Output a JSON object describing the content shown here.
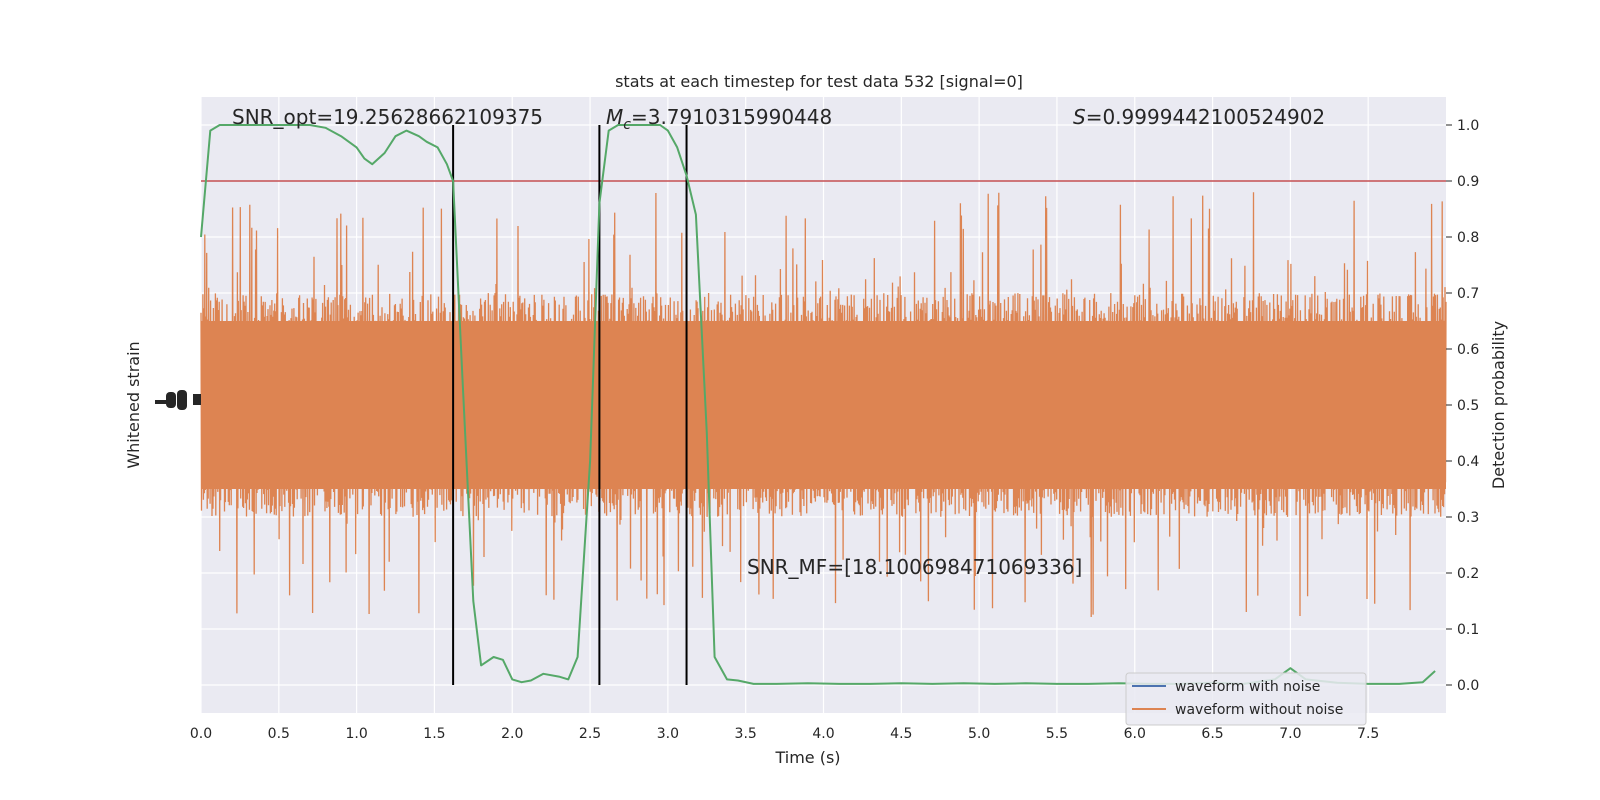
{
  "chart_data": {
    "type": "line",
    "title": "stats at each timestep for test data 532 [signal=0]",
    "xlabel": "Time (s)",
    "ylabel_left": "Whitened strain",
    "ylabel_right": "Detection probability",
    "xlim": [
      0.0,
      8.0
    ],
    "ylim_right": [
      -0.05,
      1.05
    ],
    "grid": true,
    "x_ticks": [
      "0.0",
      "0.5",
      "1.0",
      "1.5",
      "2.0",
      "2.5",
      "3.0",
      "3.5",
      "4.0",
      "4.5",
      "5.0",
      "5.5",
      "6.0",
      "6.5",
      "7.0",
      "7.5"
    ],
    "y_right_ticks": [
      "0.0",
      "0.1",
      "0.2",
      "0.3",
      "0.4",
      "0.5",
      "0.6",
      "0.7",
      "0.8",
      "0.9",
      "1.0"
    ],
    "annotations": {
      "snr_opt": "SNR_opt=19.25628662109375",
      "mc_symbol": "M",
      "mc_subscript": "c",
      "mc_value": "=3.7910315990448",
      "s_symbol": "S",
      "s_value": "=0.9999442100524902",
      "snr_mf": "SNR_MF=[18.100698471069336]"
    },
    "threshold": {
      "y": 0.9,
      "color": "#c44e52"
    },
    "vertical_lines_x": [
      1.62,
      2.56,
      3.12
    ],
    "legend": {
      "placement": "lower-right",
      "entries": [
        {
          "label": "waveform with noise",
          "color": "#4c72b0"
        },
        {
          "label": "waveform without noise",
          "color": "#dd8452"
        }
      ]
    },
    "series": [
      {
        "name": "waveform without noise",
        "color": "#dd8452",
        "representation": "dense noise band centered at 0.5 on the right axis scale",
        "center": 0.5,
        "band_half_width": 0.2,
        "peak_half_width": 0.38
      },
      {
        "color": "#55a868",
        "x": [
          0.0,
          0.06,
          0.12,
          0.2,
          0.3,
          0.4,
          0.5,
          0.6,
          0.7,
          0.8,
          0.9,
          1.0,
          1.05,
          1.1,
          1.18,
          1.25,
          1.32,
          1.4,
          1.45,
          1.52,
          1.58,
          1.62,
          1.68,
          1.75,
          1.8,
          1.88,
          1.94,
          2.0,
          2.06,
          2.12,
          2.2,
          2.3,
          2.36,
          2.42,
          2.5,
          2.56,
          2.62,
          2.68,
          2.75,
          2.85,
          2.95,
          3.0,
          3.06,
          3.12,
          3.18,
          3.25,
          3.3,
          3.38,
          3.45,
          3.55,
          3.7,
          3.9,
          4.1,
          4.3,
          4.5,
          4.7,
          4.9,
          5.1,
          5.3,
          5.5,
          5.7,
          5.9,
          6.1,
          6.3,
          6.5,
          6.7,
          6.9,
          7.0,
          7.1,
          7.3,
          7.5,
          7.7,
          7.85,
          7.93
        ],
        "values": [
          0.8,
          0.99,
          1.0,
          1.0,
          1.0,
          1.0,
          1.0,
          1.0,
          1.0,
          0.995,
          0.98,
          0.96,
          0.94,
          0.93,
          0.95,
          0.98,
          0.99,
          0.98,
          0.97,
          0.96,
          0.93,
          0.9,
          0.55,
          0.15,
          0.035,
          0.05,
          0.045,
          0.01,
          0.005,
          0.008,
          0.02,
          0.015,
          0.01,
          0.05,
          0.4,
          0.86,
          0.99,
          1.0,
          1.0,
          1.0,
          1.0,
          0.99,
          0.96,
          0.91,
          0.84,
          0.45,
          0.05,
          0.01,
          0.008,
          0.002,
          0.002,
          0.003,
          0.002,
          0.002,
          0.003,
          0.002,
          0.003,
          0.002,
          0.003,
          0.002,
          0.002,
          0.003,
          0.002,
          0.002,
          0.004,
          0.002,
          0.01,
          0.03,
          0.01,
          0.004,
          0.002,
          0.002,
          0.005,
          0.025
        ]
      }
    ]
  }
}
